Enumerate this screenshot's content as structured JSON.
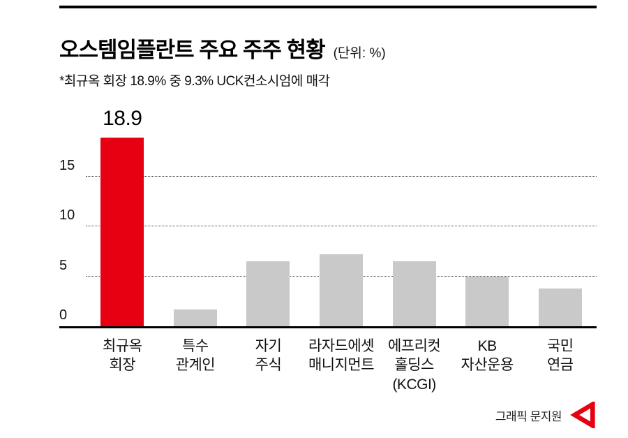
{
  "title": "오스템임플란트 주요 주주 현황",
  "unit_label": "(단위: %)",
  "subtitle": "*최규옥 회장 18.9% 중 9.3% UCK컨소시엄에 매각",
  "credit": "그래픽 문지원",
  "colors": {
    "highlight_bar": "#e60012",
    "default_bar": "#c9c9c9",
    "axis": "#000000",
    "gridline": "#444444"
  },
  "chart_data": {
    "type": "bar",
    "title": "오스템임플란트 주요 주주 현황",
    "unit": "%",
    "categories": [
      "최규옥\n회장",
      "특수\n관계인",
      "자기\n주식",
      "라자드에셋\n매니지먼트",
      "에프리컷\n홀딩스\n(KCGI)",
      "KB\n자산운용",
      "국민\n연금"
    ],
    "values": [
      18.9,
      1.7,
      6.5,
      7.2,
      6.5,
      5.0,
      3.8
    ],
    "highlight_index": 0,
    "value_label_shown_for": [
      0
    ],
    "value_labels": [
      "18.9"
    ],
    "yticks": [
      0,
      5,
      10,
      15
    ],
    "ylim": [
      0,
      19.6
    ],
    "grid": "horizontal-dotted",
    "legend": "none"
  }
}
